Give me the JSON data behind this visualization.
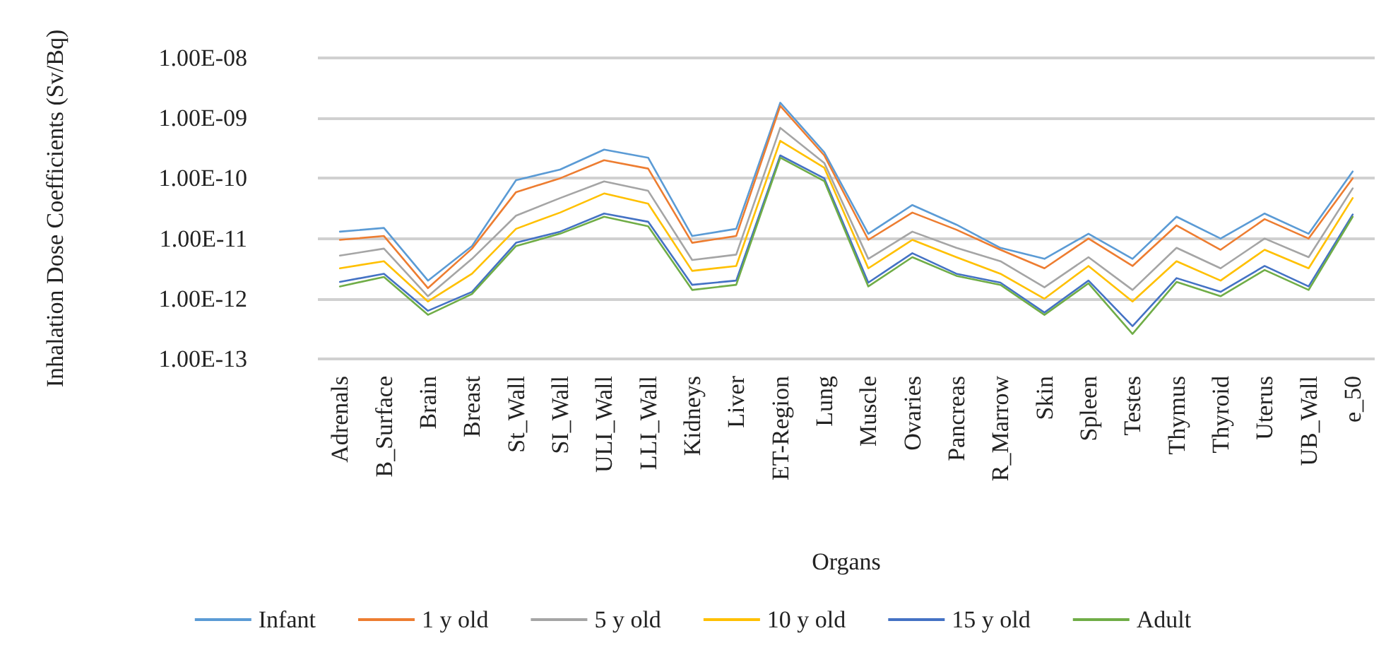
{
  "chart_data": {
    "type": "line",
    "xlabel": "Organs",
    "ylabel": "Inhalation Dose Coefficients (Sv/Bq)",
    "categories": [
      "Adrenals",
      "B_Surface",
      "Brain",
      "Breast",
      "St_Wall",
      "SI_Wall",
      "ULI_Wall",
      "LLI_Wall",
      "Kidneys",
      "Liver",
      "ET-Region",
      "Lung",
      "Muscle",
      "Ovaries",
      "Pancreas",
      "R_Marrow",
      "Skin",
      "Spleen",
      "Testes",
      "Thymus",
      "Thyroid",
      "Uterus",
      "UB_Wall",
      "e_50"
    ],
    "series": [
      {
        "name": "Infant",
        "color": "#5b9bd5",
        "values": [
          1.3e-11,
          1.5e-11,
          2e-12,
          7.5e-12,
          9.3e-11,
          1.4e-10,
          3e-10,
          2.2e-10,
          1.1e-11,
          1.45e-11,
          1.8e-09,
          2.7e-10,
          1.2e-11,
          3.6e-11,
          1.7e-11,
          7e-12,
          4.6e-12,
          1.2e-11,
          4.6e-12,
          2.3e-11,
          1e-11,
          2.6e-11,
          1.2e-11,
          1.3e-10
        ]
      },
      {
        "name": "1 y old",
        "color": "#ed7d31",
        "values": [
          9.5e-12,
          1.1e-11,
          1.5e-12,
          6.8e-12,
          5.9e-11,
          1e-10,
          2e-10,
          1.45e-10,
          8.5e-12,
          1.1e-11,
          1.6e-09,
          2.4e-10,
          9.5e-12,
          2.7e-11,
          1.4e-11,
          6.5e-12,
          3.2e-12,
          1e-11,
          3.5e-12,
          1.65e-11,
          6.5e-12,
          2.1e-11,
          1e-11,
          1e-10
        ]
      },
      {
        "name": "5 y old",
        "color": "#a5a5a5",
        "values": [
          5.2e-12,
          6.8e-12,
          1.1e-12,
          4.6e-12,
          2.4e-11,
          4.7e-11,
          8.9e-11,
          6.2e-11,
          4.4e-12,
          5.4e-12,
          6.9e-10,
          1.8e-10,
          4.6e-12,
          1.3e-11,
          7e-12,
          4.2e-12,
          1.55e-12,
          4.9e-12,
          1.4e-12,
          7e-12,
          3.2e-12,
          1e-11,
          4.9e-12,
          6.8e-11
        ]
      },
      {
        "name": "10 y old",
        "color": "#ffc000",
        "values": [
          3.2e-12,
          4.2e-12,
          9e-13,
          2.6e-12,
          1.45e-11,
          2.7e-11,
          5.6e-11,
          3.8e-11,
          2.9e-12,
          3.5e-12,
          4.2e-10,
          1.5e-10,
          3.2e-12,
          9.5e-12,
          4.9e-12,
          2.6e-12,
          1e-12,
          3.5e-12,
          9e-13,
          4.2e-12,
          2e-12,
          6.5e-12,
          3.2e-12,
          4.7e-11
        ]
      },
      {
        "name": "15 y old",
        "color": "#4472c4",
        "values": [
          1.9e-12,
          2.6e-12,
          6.3e-13,
          1.3e-12,
          8.5e-12,
          1.3e-11,
          2.6e-11,
          1.9e-11,
          1.7e-12,
          2e-12,
          2.4e-10,
          1e-10,
          1.85e-12,
          5.7e-12,
          2.6e-12,
          1.85e-12,
          5.9e-13,
          2e-12,
          3.5e-13,
          2.2e-12,
          1.3e-12,
          3.5e-12,
          1.6e-12,
          2.5e-11
        ]
      },
      {
        "name": "Adult",
        "color": "#70ad47",
        "values": [
          1.6e-12,
          2.3e-12,
          5.4e-13,
          1.2e-12,
          7.5e-12,
          1.2e-11,
          2.3e-11,
          1.6e-11,
          1.4e-12,
          1.7e-12,
          2.2e-10,
          9e-11,
          1.6e-12,
          4.9e-12,
          2.4e-12,
          1.7e-12,
          5.4e-13,
          1.8e-12,
          2.6e-13,
          1.9e-12,
          1.1e-12,
          3e-12,
          1.4e-12,
          2.3e-11
        ]
      }
    ],
    "log": "y",
    "ylim": [
      1e-13,
      1e-08
    ],
    "yticks": [
      {
        "value": 1e-13,
        "label": "1.00E-13"
      },
      {
        "value": 1e-12,
        "label": "1.00E-12"
      },
      {
        "value": 1e-11,
        "label": "1.00E-11"
      },
      {
        "value": 1e-10,
        "label": "1.00E-10"
      },
      {
        "value": 1e-09,
        "label": "1.00E-09"
      },
      {
        "value": 1e-08,
        "label": "1.00E-08"
      }
    ],
    "grid": "y",
    "legend": "bottom",
    "marker": "none",
    "line_style": "solid"
  }
}
